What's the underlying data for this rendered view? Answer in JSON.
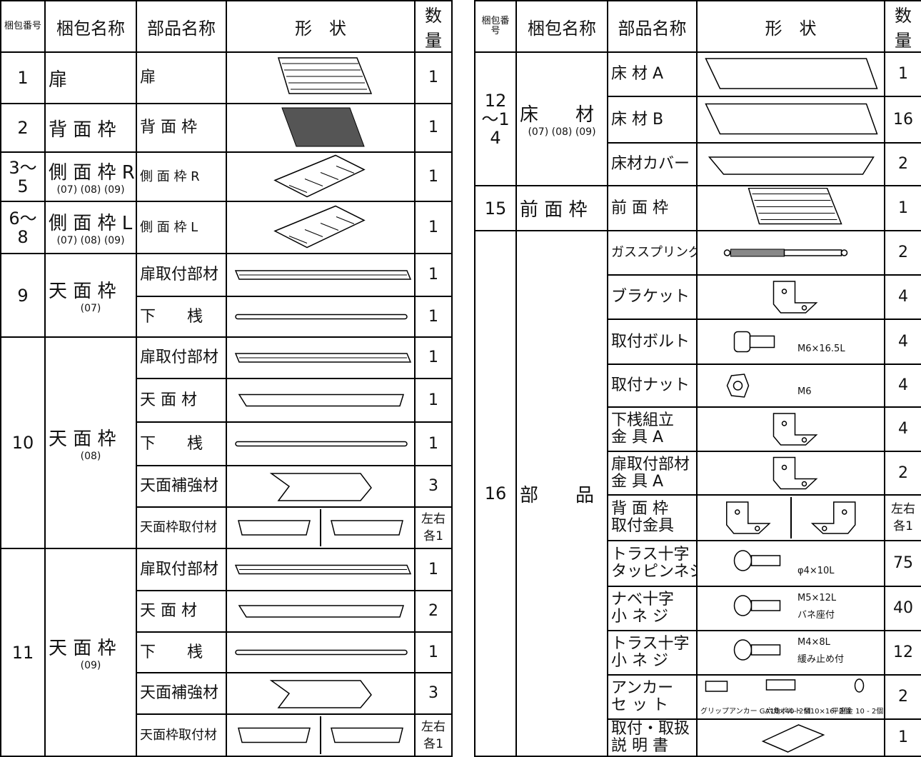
{
  "left": {
    "header": [
      "梱包番号",
      "梱包名称",
      "部品名称",
      "形　状",
      "数量"
    ],
    "groups": [
      {
        "no": "1",
        "package": "扉",
        "items": [
          {
            "part": [
              "扉"
            ],
            "qty": 1
          }
        ]
      },
      {
        "no": "2",
        "package": "背 面 枠",
        "items": [
          {
            "part": [
              "背 面 枠"
            ],
            "qty": 1
          }
        ]
      },
      {
        "no": "3～5",
        "package": "側 面 枠 R",
        "sub": "(07) (08) (09)",
        "items": [
          {
            "part": [
              "側 面 枠 R"
            ],
            "qty": 1
          }
        ]
      },
      {
        "no": "6～8",
        "package": "側 面 枠 L",
        "sub": "(07) (08) (09)",
        "items": [
          {
            "part": [
              "側 面 枠 L"
            ],
            "qty": 1
          }
        ]
      },
      {
        "no": "9",
        "package": "天 面 枠",
        "sub": "(07)",
        "items": [
          {
            "part": [
              "扉取付部材"
            ],
            "qty": 1
          },
          {
            "part": [
              "下　　桟"
            ],
            "qty": 1
          }
        ]
      },
      {
        "no": "10",
        "package": "天 面 枠",
        "sub": "(08)",
        "items": [
          {
            "part": [
              "扉取付部材"
            ],
            "qty": 1
          },
          {
            "part": [
              "天 面 材"
            ],
            "qty": 1
          },
          {
            "part": [
              "下　　桟"
            ],
            "qty": 1
          },
          {
            "part": [
              "天面補強材"
            ],
            "qty": 3
          },
          {
            "part": [
              "天面枠取付材"
            ],
            "qty": "左右各1"
          }
        ]
      },
      {
        "no": "11",
        "package": "天 面 枠",
        "sub": "(09)",
        "items": [
          {
            "part": [
              "扉取付部材"
            ],
            "qty": 1
          },
          {
            "part": [
              "天 面 材"
            ],
            "qty": 2
          },
          {
            "part": [
              "下　　桟"
            ],
            "qty": 1
          },
          {
            "part": [
              "天面補強材"
            ],
            "qty": 3
          },
          {
            "part": [
              "天面枠取付材"
            ],
            "qty": "左右各1"
          }
        ]
      }
    ]
  },
  "right": {
    "header": [
      "梱包番号",
      "梱包名称",
      "部品名称",
      "形　状",
      "数量"
    ],
    "groups": [
      {
        "no": "12～14",
        "package": "床　　材",
        "sub": "(07) (08) (09)",
        "items": [
          {
            "part": [
              "床 材 A"
            ],
            "qty": 1
          },
          {
            "part": [
              "床 材 B"
            ],
            "qty": 16
          },
          {
            "part": [
              "床材カバー"
            ],
            "qty": 2
          }
        ]
      },
      {
        "no": "15",
        "package": "前 面 枠",
        "items": [
          {
            "part": [
              "前 面 枠"
            ],
            "qty": 1
          }
        ]
      },
      {
        "no": "16",
        "package": "部　　品",
        "items": [
          {
            "part": [
              "ガススプリング"
            ],
            "qty": 2
          },
          {
            "part": [
              "ブラケット"
            ],
            "qty": 4
          },
          {
            "part": [
              "取付ボルト"
            ],
            "qty": 4,
            "notes": [
              "M6×16.5L"
            ]
          },
          {
            "part": [
              "取付ナット"
            ],
            "qty": 4,
            "notes": [
              "M6"
            ]
          },
          {
            "part": [
              "下桟組立",
              "金 具 A"
            ],
            "qty": 4
          },
          {
            "part": [
              "扉取付部材",
              "金 具 A"
            ],
            "qty": 2
          },
          {
            "part": [
              "背 面 枠",
              "取付金具"
            ],
            "qty": "左右各1"
          },
          {
            "part": [
              "トラス十字",
              "タッピンネジ"
            ],
            "qty": 75,
            "notes": [
              "φ4×10L"
            ]
          },
          {
            "part": [
              "ナベ十字",
              "小 ネ ジ"
            ],
            "qty": 40,
            "notes": [
              "M5×12L",
              "バネ座付"
            ]
          },
          {
            "part": [
              "トラス十字",
              "小 ネ ジ"
            ],
            "qty": 12,
            "notes": [
              "M4×8L",
              "緩み止め付"
            ]
          },
          {
            "part": [
              "アンカー",
              "セ ッ ト"
            ],
            "qty": 2,
            "notes": [
              "グリップアンカー GA10×40- 2個",
              "六角ボルト M10×16- 2個",
              "平座金 10 - 2個"
            ]
          },
          {
            "part": [
              "取付・取扱",
              "説 明 書"
            ],
            "qty": 1
          }
        ]
      }
    ]
  }
}
